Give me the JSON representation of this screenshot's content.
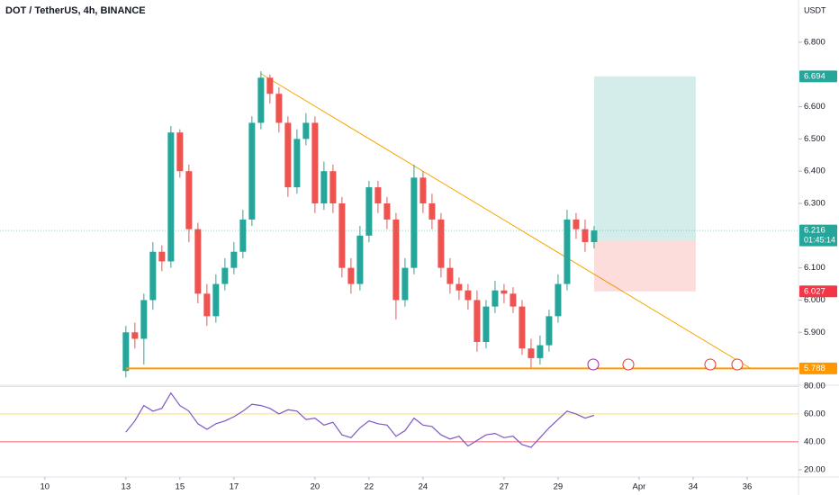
{
  "chart_data": {
    "type": "candlestick",
    "title": "DOT / TetherUS, 4h, BINANCE",
    "currency": "USDT",
    "up_color": "#26a69a",
    "down_color": "#ef5350",
    "candles": {
      "open": [
        5.78,
        5.9,
        5.88,
        6.0,
        6.15,
        6.12,
        6.52,
        6.4,
        6.22,
        6.02,
        5.95,
        6.05,
        6.1,
        6.15,
        6.25,
        6.55,
        6.69,
        6.64,
        6.55,
        6.35,
        6.5,
        6.55,
        6.3,
        6.4,
        6.3,
        6.1,
        6.05,
        6.2,
        6.35,
        6.3,
        6.25,
        6.0,
        6.1,
        6.38,
        6.3,
        6.25,
        6.1,
        6.05,
        6.03,
        6.0,
        5.87,
        5.98,
        6.03,
        6.02,
        5.98,
        5.85,
        5.82,
        5.86,
        5.95,
        6.05,
        6.25,
        6.22,
        6.18
      ],
      "high": [
        5.92,
        5.93,
        6.02,
        6.18,
        6.17,
        6.54,
        6.53,
        6.42,
        6.24,
        6.05,
        6.08,
        6.13,
        6.18,
        6.28,
        6.57,
        6.71,
        6.7,
        6.66,
        6.57,
        6.53,
        6.58,
        6.57,
        6.43,
        6.42,
        6.32,
        6.13,
        6.23,
        6.37,
        6.37,
        6.32,
        6.27,
        6.13,
        6.42,
        6.4,
        6.33,
        6.27,
        6.13,
        6.07,
        6.05,
        6.03,
        6.0,
        6.06,
        6.05,
        6.04,
        6.0,
        5.88,
        5.89,
        5.97,
        6.08,
        6.28,
        6.27,
        6.25,
        6.23
      ],
      "low": [
        5.76,
        5.85,
        5.8,
        5.97,
        6.09,
        6.1,
        6.38,
        6.18,
        5.99,
        5.92,
        5.93,
        6.03,
        6.08,
        6.13,
        6.23,
        6.53,
        6.61,
        6.52,
        6.32,
        6.33,
        6.48,
        6.27,
        6.28,
        6.27,
        6.07,
        6.02,
        6.03,
        6.18,
        6.27,
        6.22,
        5.94,
        5.98,
        6.08,
        6.27,
        6.22,
        6.07,
        6.02,
        6.0,
        5.97,
        5.84,
        5.85,
        5.96,
        5.99,
        5.96,
        5.83,
        5.79,
        5.8,
        5.84,
        5.93,
        6.03,
        6.19,
        6.15,
        6.16
      ],
      "close": [
        5.9,
        5.88,
        6.0,
        6.15,
        6.12,
        6.52,
        6.4,
        6.22,
        6.02,
        5.95,
        6.05,
        6.1,
        6.15,
        6.25,
        6.55,
        6.69,
        6.64,
        6.55,
        6.35,
        6.5,
        6.55,
        6.3,
        6.4,
        6.3,
        6.1,
        6.05,
        6.2,
        6.35,
        6.3,
        6.25,
        6.0,
        6.1,
        6.38,
        6.3,
        6.25,
        6.1,
        6.05,
        6.03,
        6.0,
        5.87,
        5.98,
        6.03,
        6.02,
        5.98,
        5.85,
        5.82,
        5.86,
        5.95,
        6.05,
        6.25,
        6.22,
        6.18,
        6.216
      ]
    },
    "ylim": [
      5.736,
      6.931
    ],
    "yticks": [
      {
        "value": 6.8,
        "label": "6.800"
      },
      {
        "value": 6.6,
        "label": "6.600"
      },
      {
        "value": 6.5,
        "label": "6.500"
      },
      {
        "value": 6.4,
        "label": "6.400"
      },
      {
        "value": 6.3,
        "label": "6.300"
      },
      {
        "value": 6.1,
        "label": "6.100"
      },
      {
        "value": 6.0,
        "label": "6.000"
      },
      {
        "value": 5.9,
        "label": "5.900"
      }
    ],
    "xlim": [
      8.34,
      37.9
    ],
    "xticks": [
      10,
      13,
      15,
      17,
      20,
      22,
      24,
      27,
      29,
      {
        "value": 32,
        "label": "Apr"
      },
      34,
      36
    ],
    "position": {
      "target": 6.694,
      "entry": 6.186,
      "stop": 6.027
    },
    "support": 5.788,
    "last_price": 6.216,
    "countdown": "01:45:14",
    "rsi": {
      "color": "#7e57c2",
      "values": [
        47,
        55,
        66,
        62,
        64,
        75,
        66,
        62,
        53,
        49,
        53,
        55,
        58,
        62,
        67,
        66,
        64,
        60,
        63,
        62,
        56,
        57,
        52,
        54,
        45,
        43,
        50,
        55,
        53,
        52,
        44,
        48,
        57,
        52,
        51,
        45,
        42,
        44,
        37,
        41,
        45,
        46,
        43,
        44,
        38,
        36,
        43,
        50,
        56,
        62,
        60,
        57,
        59
      ],
      "ylim": [
        14.8,
        80.6
      ],
      "yticks": [
        {
          "value": 80,
          "label": "80.00"
        },
        {
          "value": 60,
          "label": "60.00"
        },
        {
          "value": 40,
          "label": "40.00"
        },
        {
          "value": 20,
          "label": "20.00"
        }
      ]
    }
  }
}
